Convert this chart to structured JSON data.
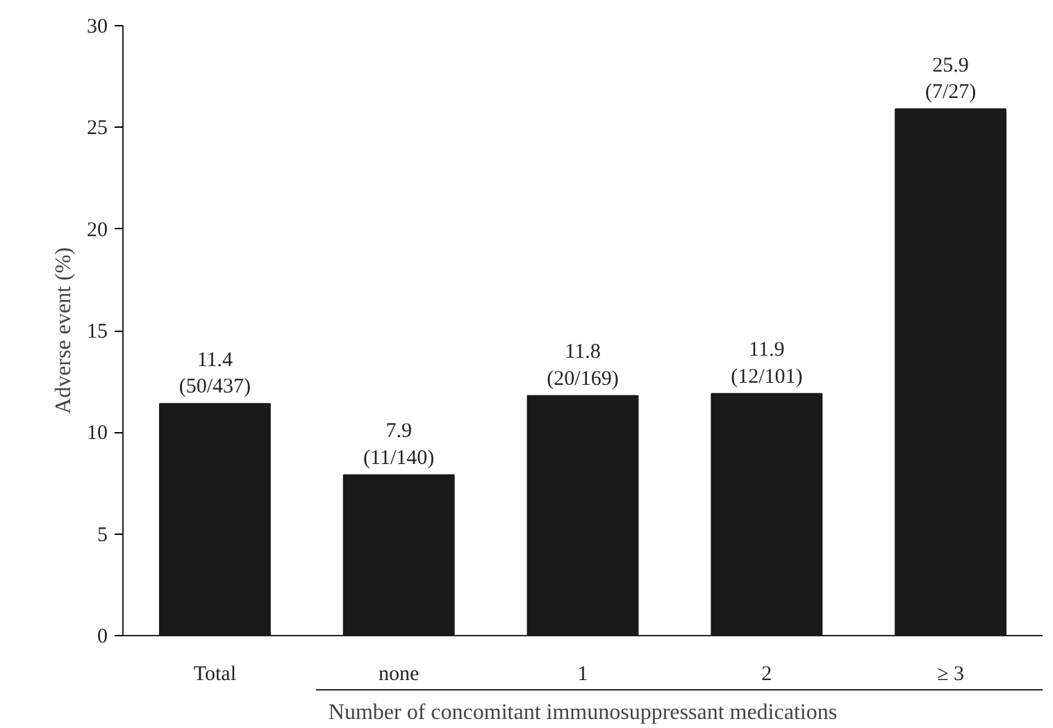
{
  "chart_data": {
    "type": "bar",
    "ylabel": "Adverse event (%)",
    "xlabel": "Number of concomitant immunosuppressant medications",
    "categories": [
      "Total",
      "none",
      "1",
      "2",
      "≥ 3"
    ],
    "values": [
      11.4,
      7.9,
      11.8,
      11.9,
      25.9
    ],
    "value_labels": [
      "11.4\n(50/437)",
      "7.9\n(11/140)",
      "11.8\n(20/169)",
      "11.9\n(12/101)",
      "25.9\n(7/27)"
    ],
    "color": "#1a1a1a",
    "ylim": [
      0,
      30
    ],
    "yticks": [
      0,
      5,
      10,
      15,
      20,
      25,
      30
    ],
    "grid": false
  }
}
